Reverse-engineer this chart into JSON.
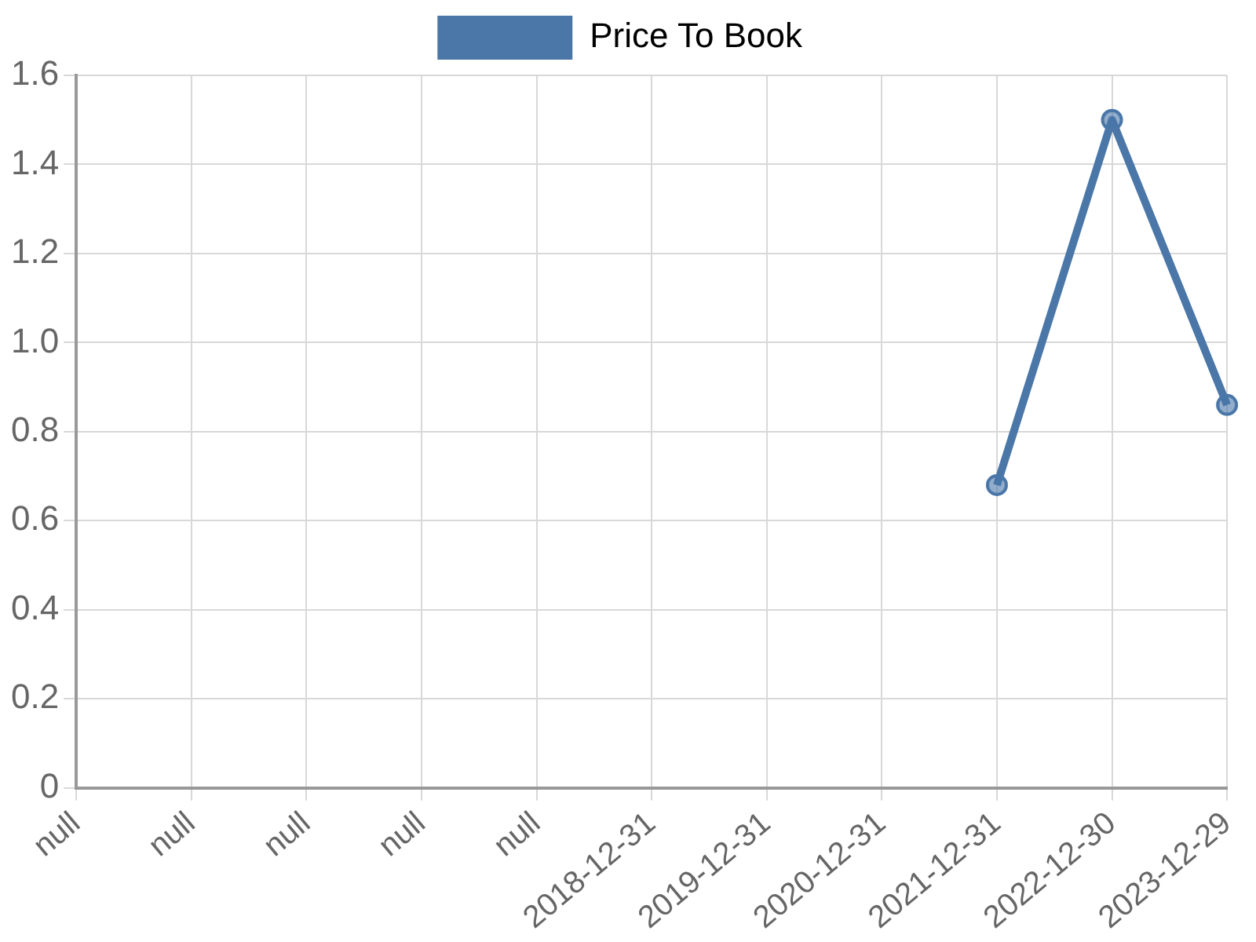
{
  "chart_data": {
    "type": "line",
    "categories": [
      "null",
      "null",
      "null",
      "null",
      "null",
      "2018-12-31",
      "2019-12-31",
      "2020-12-31",
      "2021-12-31",
      "2022-12-30",
      "2023-12-29"
    ],
    "series": [
      {
        "name": "Price To Book",
        "color": "#4a77a8",
        "values": [
          null,
          null,
          null,
          null,
          null,
          null,
          null,
          null,
          0.68,
          1.5,
          0.86
        ]
      }
    ],
    "ylim": [
      0,
      1.6
    ],
    "yticks": [
      0,
      0.2,
      0.4,
      0.6,
      0.8,
      {
        "value": 1,
        "label": "1.0"
      },
      1.2,
      1.4,
      1.6
    ],
    "grid": true,
    "legend": "top",
    "marker": "circle",
    "line_style": "solid"
  }
}
